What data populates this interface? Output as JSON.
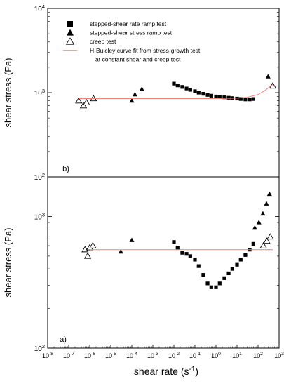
{
  "chart_data": [
    {
      "type": "scatter",
      "panel_label": "b)",
      "title": "",
      "xlabel": "",
      "ylabel": "shear stress (Pa)",
      "xscale": "log",
      "yscale": "log",
      "xlim": [
        1e-08,
        1000
      ],
      "ylim": [
        100,
        10000
      ],
      "y_ticks": [
        {
          "base": "10",
          "exp": "2",
          "value": 100
        },
        {
          "base": "10",
          "exp": "3",
          "value": 1000
        },
        {
          "base": "10",
          "exp": "4",
          "value": 10000
        }
      ],
      "grid": false,
      "legend": {
        "placement": "top-left",
        "entries": [
          {
            "label": "stepped-shear rate ramp test",
            "marker": "filled-square"
          },
          {
            "label": "stepped-shear stress ramp test",
            "marker": "filled-triangle"
          },
          {
            "label": "creep test",
            "marker": "open-triangle"
          },
          {
            "label": "H-Bulcley curve fit from stress-growth test",
            "label2": "at constant shear and creep test",
            "marker": "line",
            "color": "#f08080"
          }
        ]
      },
      "series": [
        {
          "marker": "filled-square",
          "x": [
            0.01,
            0.015,
            0.025,
            0.04,
            0.06,
            0.1,
            0.15,
            0.25,
            0.4,
            0.6,
            1,
            1.5,
            2.5,
            4,
            6,
            10,
            15,
            25,
            40,
            60
          ],
          "y": [
            1280,
            1220,
            1170,
            1120,
            1080,
            1040,
            1000,
            970,
            940,
            920,
            900,
            890,
            880,
            870,
            860,
            850,
            840,
            830,
            830,
            840
          ]
        },
        {
          "marker": "filled-triangle",
          "x": [
            0.0001,
            0.00014,
            0.0003,
            300
          ],
          "y": [
            800,
            950,
            1100,
            1550
          ]
        },
        {
          "marker": "open-triangle",
          "x": [
            3e-07,
            5e-07,
            7e-07,
            1.5e-06,
            500
          ],
          "y": [
            800,
            700,
            760,
            850,
            1200
          ]
        },
        {
          "marker": "line",
          "color": "#f08080",
          "x": [
            3e-07,
            1,
            10,
            30,
            100,
            200,
            500
          ],
          "y": [
            850,
            850,
            860,
            880,
            950,
            1050,
            1250
          ]
        }
      ]
    },
    {
      "type": "scatter",
      "panel_label": "a)",
      "title": "",
      "xlabel": "shear rate (s",
      "xlabel_sup": "-1",
      "xlabel_close": ")",
      "ylabel": "shear stress  (Pa)",
      "xscale": "log",
      "yscale": "log",
      "xlim": [
        1e-08,
        1000
      ],
      "ylim": [
        100,
        2000
      ],
      "x_ticks": [
        {
          "base": "10",
          "exp": "-8",
          "value": 1e-08
        },
        {
          "base": "10",
          "exp": "-7",
          "value": 1e-07
        },
        {
          "base": "10",
          "exp": "-6",
          "value": 1e-06
        },
        {
          "base": "10",
          "exp": "-5",
          "value": 1e-05
        },
        {
          "base": "10",
          "exp": "-4",
          "value": 0.0001
        },
        {
          "base": "10",
          "exp": "-3",
          "value": 0.001
        },
        {
          "base": "10",
          "exp": "-2",
          "value": 0.01
        },
        {
          "base": "10",
          "exp": "-1",
          "value": 0.1
        },
        {
          "base": "10",
          "exp": "0",
          "value": 1
        },
        {
          "base": "10",
          "exp": "1",
          "value": 10
        },
        {
          "base": "10",
          "exp": "2",
          "value": 100
        },
        {
          "base": "10",
          "exp": "3",
          "value": 1000
        }
      ],
      "y_ticks": [
        {
          "base": "10",
          "exp": "2",
          "value": 100
        },
        {
          "base": "10",
          "exp": "3",
          "value": 1000
        }
      ],
      "grid": false,
      "series": [
        {
          "marker": "filled-square",
          "x": [
            0.01,
            0.015,
            0.025,
            0.04,
            0.06,
            0.1,
            0.15,
            0.25,
            0.4,
            0.6,
            1,
            1.5,
            2.5,
            4,
            6,
            10,
            15,
            25,
            40,
            60
          ],
          "y": [
            640,
            580,
            530,
            520,
            500,
            470,
            420,
            360,
            310,
            290,
            290,
            310,
            340,
            370,
            400,
            430,
            470,
            510,
            560,
            620
          ]
        },
        {
          "marker": "filled-triangle",
          "x": [
            3e-05,
            0.0001,
            70,
            110,
            170,
            250,
            350
          ],
          "y": [
            540,
            660,
            820,
            900,
            1050,
            1250,
            1480
          ]
        },
        {
          "marker": "open-triangle",
          "x": [
            6e-07,
            8e-07,
            1e-06,
            1.4e-06,
            180,
            260,
            380
          ],
          "y": [
            560,
            500,
            580,
            600,
            600,
            650,
            700
          ]
        },
        {
          "marker": "line",
          "color": "#f08080",
          "x": [
            1e-06,
            500
          ],
          "y": [
            560,
            560
          ]
        }
      ]
    }
  ]
}
